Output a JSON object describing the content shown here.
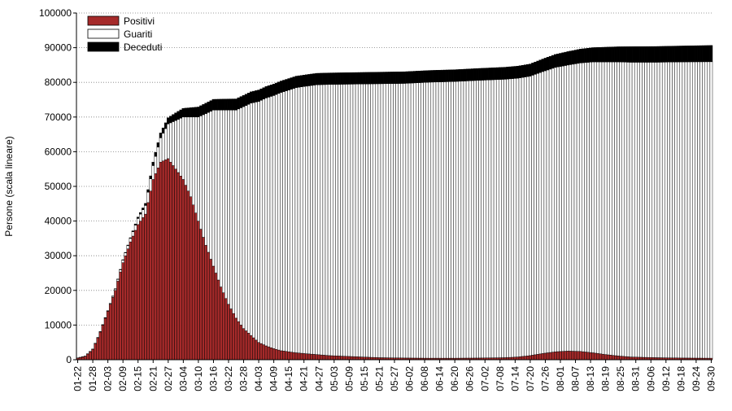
{
  "chart_data": {
    "type": "bar",
    "stacked": true,
    "ylabel": "Persone (scala lineare)",
    "xlabel": "",
    "ylim": [
      0,
      100000
    ],
    "yticks": [
      0,
      10000,
      20000,
      30000,
      40000,
      50000,
      60000,
      70000,
      80000,
      90000,
      100000
    ],
    "xtick_labels": [
      "01-22",
      "01-28",
      "02-03",
      "02-09",
      "02-15",
      "02-21",
      "02-27",
      "03-04",
      "03-10",
      "03-16",
      "03-22",
      "03-28",
      "04-03",
      "04-09",
      "04-15",
      "04-21",
      "04-27",
      "05-03",
      "05-09",
      "05-15",
      "05-21",
      "05-27",
      "06-02",
      "06-08",
      "06-14",
      "06-20",
      "06-26",
      "07-02",
      "07-08",
      "07-14",
      "07-20",
      "07-26",
      "08-01",
      "08-07",
      "08-13",
      "08-19",
      "08-25",
      "08-31",
      "09-06",
      "09-12",
      "09-18",
      "09-24",
      "09-30"
    ],
    "grid": "horizontal-dotted",
    "legend_position": "top-left",
    "start_date": "01-22",
    "n_days": 253,
    "series": [
      {
        "name": "Positivi",
        "color": "#a52a2a",
        "fill": "solid",
        "keypoints": [
          [
            0,
            500
          ],
          [
            3,
            1000
          ],
          [
            6,
            3000
          ],
          [
            9,
            8000
          ],
          [
            12,
            14000
          ],
          [
            15,
            20000
          ],
          [
            18,
            28000
          ],
          [
            21,
            34000
          ],
          [
            24,
            39000
          ],
          [
            27,
            42000
          ],
          [
            30,
            52000
          ],
          [
            33,
            57000
          ],
          [
            36,
            58000
          ],
          [
            39,
            55000
          ],
          [
            42,
            52000
          ],
          [
            45,
            47000
          ],
          [
            48,
            40000
          ],
          [
            51,
            33000
          ],
          [
            54,
            27000
          ],
          [
            57,
            21000
          ],
          [
            60,
            16000
          ],
          [
            63,
            12000
          ],
          [
            66,
            9000
          ],
          [
            69,
            7000
          ],
          [
            72,
            5000
          ],
          [
            75,
            4000
          ],
          [
            78,
            3200
          ],
          [
            81,
            2600
          ],
          [
            84,
            2300
          ],
          [
            87,
            2000
          ],
          [
            90,
            1800
          ],
          [
            95,
            1500
          ],
          [
            100,
            1200
          ],
          [
            110,
            900
          ],
          [
            120,
            600
          ],
          [
            130,
            500
          ],
          [
            140,
            450
          ],
          [
            150,
            450
          ],
          [
            160,
            500
          ],
          [
            170,
            600
          ],
          [
            175,
            800
          ],
          [
            180,
            1200
          ],
          [
            185,
            1800
          ],
          [
            190,
            2300
          ],
          [
            195,
            2500
          ],
          [
            200,
            2400
          ],
          [
            205,
            2000
          ],
          [
            210,
            1500
          ],
          [
            215,
            1100
          ],
          [
            220,
            800
          ],
          [
            230,
            600
          ],
          [
            240,
            500
          ],
          [
            252,
            450
          ]
        ]
      },
      {
        "name": "Guariti",
        "color": "#ffffff",
        "fill": "white-outlined",
        "keypoints": [
          [
            0,
            0
          ],
          [
            12,
            100
          ],
          [
            21,
            1000
          ],
          [
            27,
            2500
          ],
          [
            30,
            4000
          ],
          [
            33,
            7000
          ],
          [
            36,
            10000
          ],
          [
            39,
            14000
          ],
          [
            42,
            18000
          ],
          [
            45,
            23000
          ],
          [
            48,
            30000
          ],
          [
            51,
            38000
          ],
          [
            54,
            45000
          ],
          [
            57,
            51000
          ],
          [
            60,
            56000
          ],
          [
            63,
            60000
          ],
          [
            66,
            64000
          ],
          [
            69,
            67000
          ],
          [
            72,
            69500
          ],
          [
            75,
            71500
          ],
          [
            78,
            73000
          ],
          [
            81,
            74500
          ],
          [
            84,
            75500
          ],
          [
            87,
            76500
          ],
          [
            90,
            77000
          ],
          [
            95,
            77800
          ],
          [
            100,
            78200
          ],
          [
            110,
            78600
          ],
          [
            120,
            79000
          ],
          [
            130,
            79200
          ],
          [
            140,
            79600
          ],
          [
            150,
            79800
          ],
          [
            160,
            80100
          ],
          [
            170,
            80300
          ],
          [
            175,
            80400
          ],
          [
            180,
            80600
          ],
          [
            185,
            81300
          ],
          [
            190,
            82000
          ],
          [
            195,
            82500
          ],
          [
            200,
            83200
          ],
          [
            205,
            83900
          ],
          [
            210,
            84400
          ],
          [
            215,
            84800
          ],
          [
            220,
            85000
          ],
          [
            230,
            85200
          ],
          [
            240,
            85400
          ],
          [
            252,
            85500
          ]
        ]
      },
      {
        "name": "Deceduti",
        "color": "#000000",
        "fill": "solid",
        "keypoints": [
          [
            0,
            20
          ],
          [
            12,
            50
          ],
          [
            21,
            200
          ],
          [
            27,
            600
          ],
          [
            30,
            1000
          ],
          [
            33,
            1400
          ],
          [
            36,
            1800
          ],
          [
            39,
            2200
          ],
          [
            42,
            2500
          ],
          [
            45,
            2700
          ],
          [
            48,
            2900
          ],
          [
            51,
            3000
          ],
          [
            54,
            3100
          ],
          [
            57,
            3150
          ],
          [
            60,
            3200
          ],
          [
            66,
            3250
          ],
          [
            72,
            3300
          ],
          [
            90,
            3300
          ],
          [
            120,
            3350
          ],
          [
            150,
            3400
          ],
          [
            180,
            3500
          ],
          [
            200,
            4000
          ],
          [
            220,
            4500
          ],
          [
            240,
            4600
          ],
          [
            252,
            4700
          ]
        ]
      }
    ]
  }
}
